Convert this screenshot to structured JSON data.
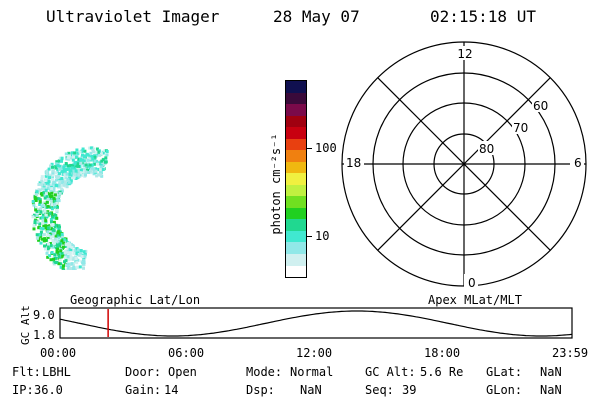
{
  "header": {
    "instrument": "Ultraviolet Imager",
    "date": "28 May 07",
    "time": "02:15:18 UT"
  },
  "colorbar": {
    "label": "photon cm⁻²s⁻¹",
    "ticks": [
      "100",
      "10"
    ],
    "colors": [
      "#101050",
      "#3a0a3a",
      "#7a0a4a",
      "#a00010",
      "#c80010",
      "#e84010",
      "#f08010",
      "#f0b810",
      "#f0f040",
      "#c0f040",
      "#70e020",
      "#20d020",
      "#20d890",
      "#40e8d0",
      "#90e8e8",
      "#d0f0f0",
      "#ffffff"
    ]
  },
  "polar_grid": {
    "mlt_labels": {
      "top": "12",
      "left": "18",
      "right": "6",
      "bottom": "0"
    },
    "lat_labels": [
      "60",
      "70",
      "80"
    ]
  },
  "timeline": {
    "y_label": "GC Alt",
    "y_ticks": [
      "9.0",
      "1.8"
    ],
    "left_caption": "Geographic Lat/Lon",
    "right_caption": "Apex MLat/MLT",
    "x_ticks": [
      "00:00",
      "06:00",
      "12:00",
      "18:00",
      "23:59"
    ],
    "current_time_fraction": 0.094
  },
  "status": {
    "row1": [
      {
        "label": "Flt:",
        "value": "LBHL"
      },
      {
        "label": "Door:",
        "value": "Open"
      },
      {
        "label": "Mode:",
        "value": "Normal"
      },
      {
        "label": "GC Alt:",
        "value": "5.6 Re"
      },
      {
        "label": "GLat:",
        "value": "NaN"
      }
    ],
    "row2": [
      {
        "label": "IP:",
        "value": "36.0"
      },
      {
        "label": "Gain:",
        "value": "14"
      },
      {
        "label": "Dsp:",
        "value": "NaN"
      },
      {
        "label": "Seq:",
        "value": "39"
      },
      {
        "label": "GLon:",
        "value": "NaN"
      }
    ]
  }
}
